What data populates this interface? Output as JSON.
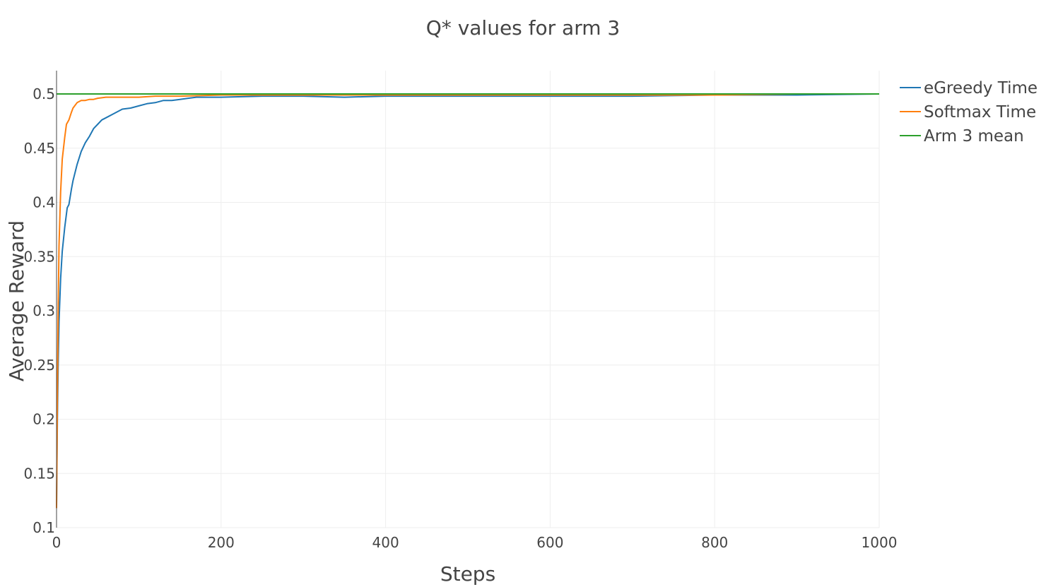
{
  "chart_data": {
    "type": "line",
    "title": "Q* values for arm 3",
    "xlabel": "Steps",
    "ylabel": "Average Reward",
    "xlim": [
      0,
      1000
    ],
    "ylim": [
      0.1,
      0.52
    ],
    "xticks": [
      0,
      200,
      400,
      600,
      800,
      1000
    ],
    "yticks": [
      0.1,
      0.15,
      0.2,
      0.25,
      0.3,
      0.35,
      0.4,
      0.45,
      0.5
    ],
    "ytick_labels": [
      "0.1",
      "0.15",
      "0.2",
      "0.25",
      "0.3",
      "0.35",
      "0.4",
      "0.45",
      "0.5"
    ],
    "xtick_labels": [
      "0",
      "200",
      "400",
      "600",
      "800",
      "1000"
    ],
    "grid": true,
    "legend_position": "top-right",
    "series": [
      {
        "name": "eGreedy Time",
        "color": "#1f77b4",
        "x": [
          0,
          1,
          2,
          3,
          5,
          7,
          10,
          13,
          15,
          18,
          20,
          25,
          30,
          35,
          40,
          45,
          50,
          55,
          60,
          70,
          80,
          90,
          100,
          110,
          120,
          130,
          140,
          150,
          160,
          170,
          180,
          200,
          250,
          300,
          350,
          400,
          450,
          500,
          600,
          700,
          800,
          900,
          1000
        ],
        "y": [
          0.12,
          0.2,
          0.25,
          0.29,
          0.33,
          0.355,
          0.377,
          0.395,
          0.398,
          0.412,
          0.42,
          0.435,
          0.447,
          0.455,
          0.461,
          0.468,
          0.472,
          0.476,
          0.478,
          0.482,
          0.486,
          0.487,
          0.489,
          0.491,
          0.492,
          0.494,
          0.494,
          0.495,
          0.496,
          0.497,
          0.497,
          0.497,
          0.498,
          0.498,
          0.497,
          0.498,
          0.498,
          0.498,
          0.498,
          0.498,
          0.499,
          0.499,
          0.5
        ]
      },
      {
        "name": "Softmax Time",
        "color": "#ff7f0e",
        "x": [
          0,
          1,
          2,
          3,
          5,
          7,
          10,
          12,
          15,
          18,
          20,
          25,
          30,
          35,
          40,
          45,
          50,
          60,
          70,
          80,
          100,
          120,
          150,
          200,
          300,
          400,
          500,
          600,
          700,
          800,
          900,
          1000
        ],
        "y": [
          0.118,
          0.22,
          0.3,
          0.36,
          0.41,
          0.44,
          0.46,
          0.472,
          0.476,
          0.483,
          0.487,
          0.492,
          0.494,
          0.494,
          0.495,
          0.495,
          0.496,
          0.497,
          0.497,
          0.497,
          0.497,
          0.498,
          0.498,
          0.499,
          0.499,
          0.499,
          0.499,
          0.499,
          0.499,
          0.499,
          0.5,
          0.5
        ]
      },
      {
        "name": "Arm 3 mean",
        "color": "#2ca02c",
        "x": [
          0,
          1000
        ],
        "y": [
          0.5,
          0.5
        ]
      }
    ]
  }
}
